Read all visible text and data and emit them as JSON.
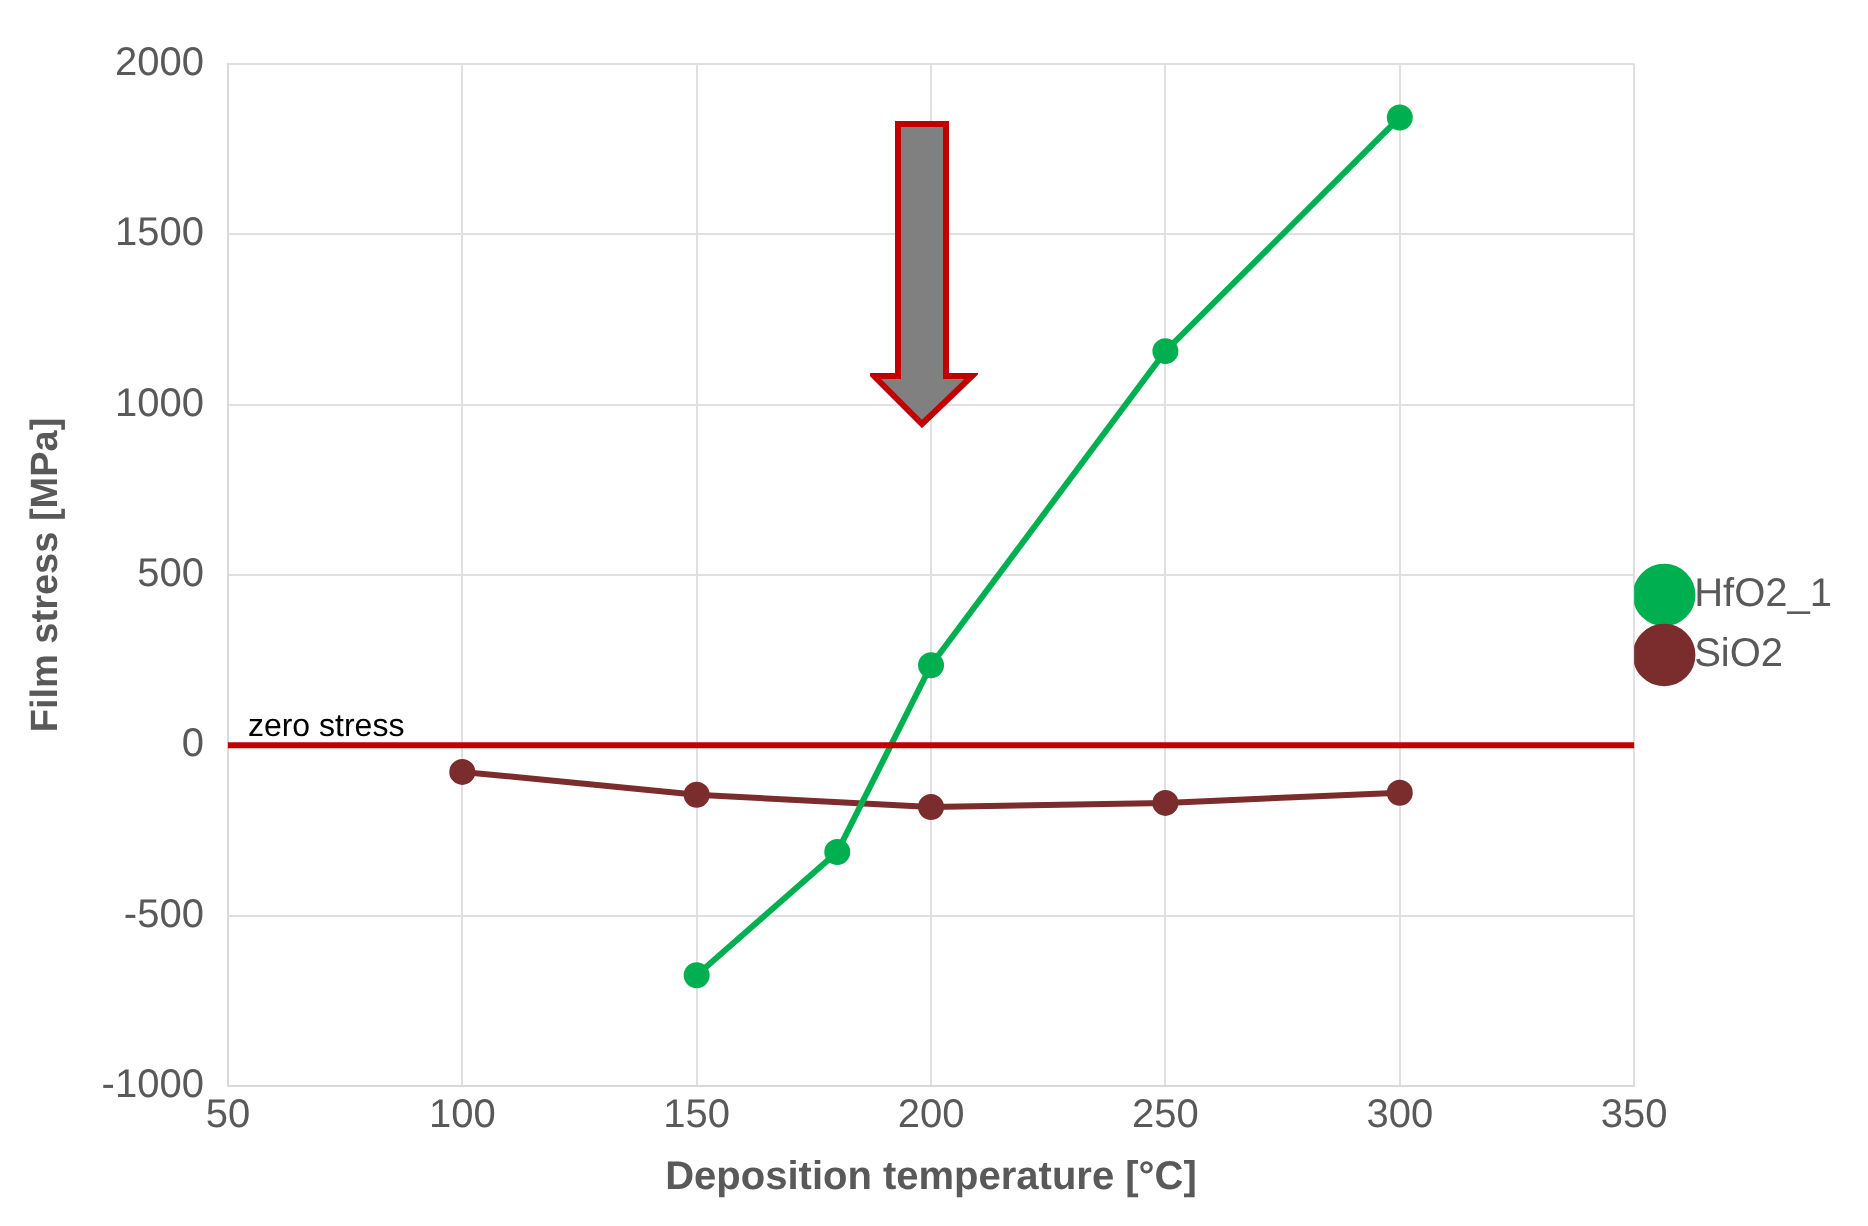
{
  "chart_data": {
    "type": "line",
    "xlabel": "Deposition temperature [°C]",
    "ylabel": "Film stress [MPa]",
    "series": [
      {
        "name": "HfO2_1",
        "color": "#00b050",
        "x": [
          150,
          180,
          200,
          250,
          300
        ],
        "values": [
          -675,
          -313,
          235,
          1157,
          1843
        ]
      },
      {
        "name": "SiO2",
        "color": "#7b2c2c",
        "x": [
          100,
          150,
          200,
          250,
          300
        ],
        "values": [
          -78,
          -145,
          -181,
          -169,
          -139
        ]
      }
    ],
    "xlim": [
      50,
      350
    ],
    "xticks": [
      50,
      100,
      150,
      200,
      250,
      300,
      350
    ],
    "ylim": [
      -1000,
      2000
    ],
    "yticks": [
      -1000,
      -500,
      0,
      500,
      1000,
      1500,
      2000
    ],
    "ref_lines": [
      {
        "axis": "y",
        "value": 0,
        "label": "zero stress",
        "color": "#c00000"
      }
    ],
    "grid": true,
    "legend": "right",
    "marker": "circle",
    "line_style": "solid"
  }
}
